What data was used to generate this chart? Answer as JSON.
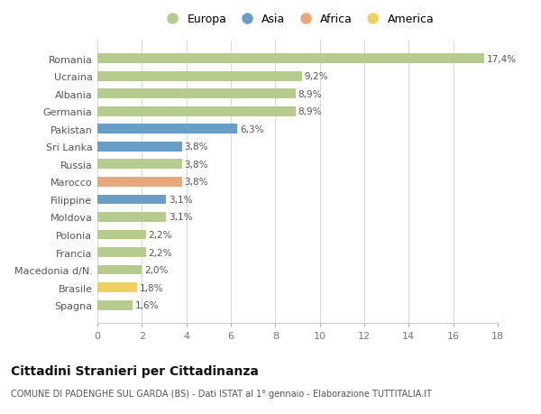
{
  "countries": [
    "Romania",
    "Ucraina",
    "Albania",
    "Germania",
    "Pakistan",
    "Sri Lanka",
    "Russia",
    "Marocco",
    "Filippine",
    "Moldova",
    "Polonia",
    "Francia",
    "Macedonia d/N.",
    "Brasile",
    "Spagna"
  ],
  "values": [
    17.4,
    9.2,
    8.9,
    8.9,
    6.3,
    3.8,
    3.8,
    3.8,
    3.1,
    3.1,
    2.2,
    2.2,
    2.0,
    1.8,
    1.6
  ],
  "labels": [
    "17,4%",
    "9,2%",
    "8,9%",
    "8,9%",
    "6,3%",
    "3,8%",
    "3,8%",
    "3,8%",
    "3,1%",
    "3,1%",
    "2,2%",
    "2,2%",
    "2,0%",
    "1,8%",
    "1,6%"
  ],
  "continents": [
    "Europa",
    "Europa",
    "Europa",
    "Europa",
    "Asia",
    "Asia",
    "Europa",
    "Africa",
    "Asia",
    "Europa",
    "Europa",
    "Europa",
    "Europa",
    "America",
    "Europa"
  ],
  "colors": {
    "Europa": "#b5cc8e",
    "Asia": "#6b9ec7",
    "Africa": "#e8a87c",
    "America": "#f0d060"
  },
  "legend_order": [
    "Europa",
    "Asia",
    "Africa",
    "America"
  ],
  "xlim": [
    0,
    18
  ],
  "xticks": [
    0,
    2,
    4,
    6,
    8,
    10,
    12,
    14,
    16,
    18
  ],
  "title": "Cittadini Stranieri per Cittadinanza",
  "subtitle": "COMUNE DI PADENGHE SUL GARDA (BS) - Dati ISTAT al 1° gennaio - Elaborazione TUTTITALIA.IT",
  "background_color": "#ffffff",
  "grid_color": "#d8d8d8"
}
